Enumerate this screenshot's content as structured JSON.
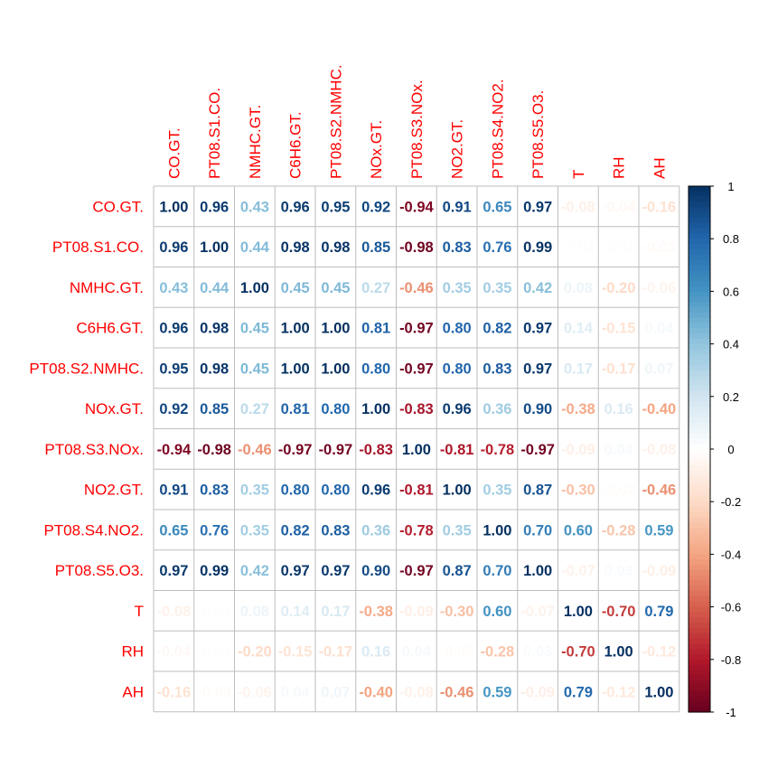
{
  "chart_data": {
    "type": "heatmap",
    "variables": [
      "CO.GT.",
      "PT08.S1.CO.",
      "NMHC.GT.",
      "C6H6.GT.",
      "PT08.S2.NMHC.",
      "NOx.GT.",
      "PT08.S3.NOx.",
      "NO2.GT.",
      "PT08.S4.NO2.",
      "PT08.S5.O3.",
      "T",
      "RH",
      "AH"
    ],
    "matrix": [
      [
        1.0,
        0.96,
        0.43,
        0.96,
        0.95,
        0.92,
        -0.94,
        0.91,
        0.65,
        0.97,
        -0.08,
        -0.04,
        -0.16
      ],
      [
        0.96,
        1.0,
        0.44,
        0.98,
        0.98,
        0.85,
        -0.98,
        0.83,
        0.76,
        0.99,
        -0.01,
        -0.01,
        -0.03
      ],
      [
        0.43,
        0.44,
        1.0,
        0.45,
        0.45,
        0.27,
        -0.46,
        0.35,
        0.35,
        0.42,
        0.08,
        -0.2,
        -0.06
      ],
      [
        0.96,
        0.98,
        0.45,
        1.0,
        1.0,
        0.81,
        -0.97,
        0.8,
        0.82,
        0.97,
        0.14,
        -0.15,
        0.04
      ],
      [
        0.95,
        0.98,
        0.45,
        1.0,
        1.0,
        0.8,
        -0.97,
        0.8,
        0.83,
        0.97,
        0.17,
        -0.17,
        0.07
      ],
      [
        0.92,
        0.85,
        0.27,
        0.81,
        0.8,
        1.0,
        -0.83,
        0.96,
        0.36,
        0.9,
        -0.38,
        0.16,
        -0.4
      ],
      [
        -0.94,
        -0.98,
        -0.46,
        -0.97,
        -0.97,
        -0.83,
        1.0,
        -0.81,
        -0.78,
        -0.97,
        -0.09,
        0.04,
        -0.08
      ],
      [
        0.91,
        0.83,
        0.35,
        0.8,
        0.8,
        0.96,
        -0.81,
        1.0,
        0.35,
        0.87,
        -0.3,
        -0.02,
        -0.46
      ],
      [
        0.65,
        0.76,
        0.35,
        0.82,
        0.83,
        0.36,
        -0.78,
        0.35,
        1.0,
        0.7,
        0.6,
        -0.28,
        0.59
      ],
      [
        0.97,
        0.99,
        0.42,
        0.97,
        0.97,
        0.9,
        -0.97,
        0.87,
        0.7,
        1.0,
        -0.07,
        0.03,
        -0.09
      ],
      [
        -0.08,
        -0.01,
        0.08,
        0.14,
        0.17,
        -0.38,
        -0.09,
        -0.3,
        0.6,
        -0.07,
        1.0,
        -0.7,
        0.79
      ],
      [
        -0.04,
        -0.01,
        -0.2,
        -0.15,
        -0.17,
        0.16,
        0.04,
        -0.02,
        -0.28,
        0.03,
        -0.7,
        1.0,
        -0.12
      ],
      [
        -0.16,
        -0.03,
        -0.06,
        0.04,
        0.07,
        -0.4,
        -0.08,
        -0.46,
        0.59,
        -0.09,
        0.79,
        -0.12,
        1.0
      ]
    ],
    "value_format": "2 decimals",
    "colorbar": {
      "range": [
        -1,
        1
      ],
      "ticks": [
        "1",
        "0.8",
        "0.6",
        "0.4",
        "0.2",
        "0",
        "-0.2",
        "-0.4",
        "-0.6",
        "-0.8",
        "-1"
      ],
      "palette": [
        "#67001F",
        "#B2182B",
        "#D6604D",
        "#F4A582",
        "#FDDBC7",
        "#FFFFFF",
        "#D1E5F0",
        "#92C5DE",
        "#4393C3",
        "#2166AC",
        "#053061"
      ],
      "placement": "right"
    },
    "label_color": "#FF0000",
    "grid_color": "#BEBEBE"
  }
}
